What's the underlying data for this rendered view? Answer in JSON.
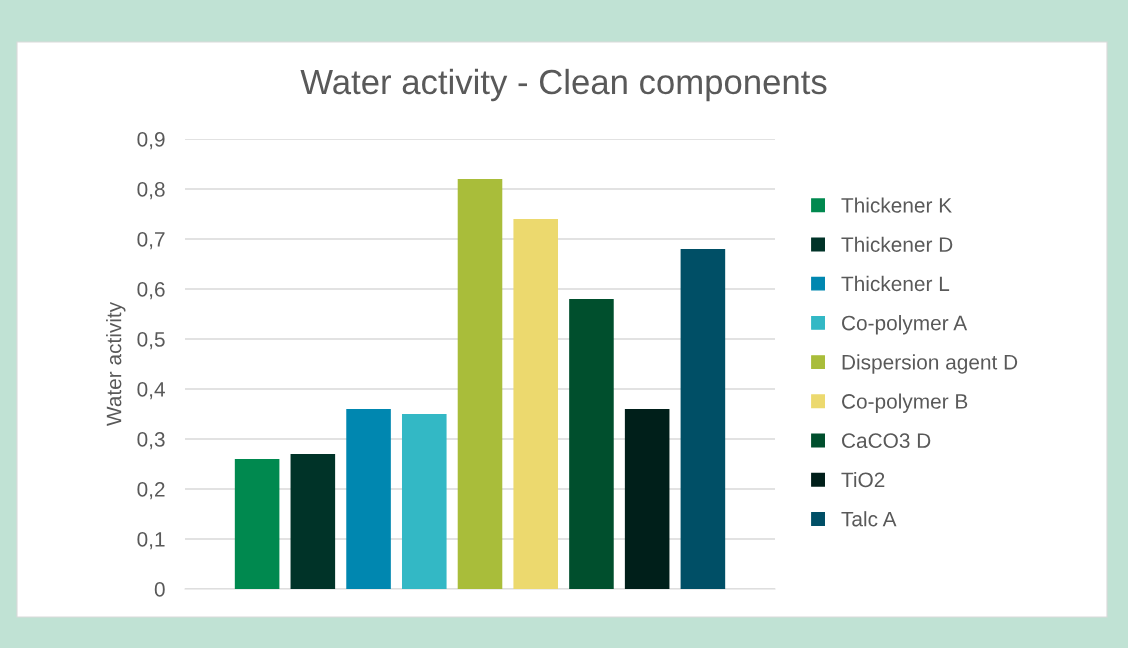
{
  "chart_data": {
    "type": "bar",
    "title": "Water activity - Clean components",
    "ylabel": "Water activity",
    "categories": [
      null
    ],
    "series": [
      {
        "name": "Thickener K",
        "color": "#00894f",
        "values": [
          0.26
        ]
      },
      {
        "name": "Thickener D",
        "color": "#003328",
        "values": [
          0.27
        ]
      },
      {
        "name": "Thickener L",
        "color": "#0087b0",
        "values": [
          0.36
        ]
      },
      {
        "name": "Co-polymer A",
        "color": "#33b8c5",
        "values": [
          0.35
        ]
      },
      {
        "name": "Dispersion agent D",
        "color": "#a9bd3a",
        "values": [
          0.82
        ]
      },
      {
        "name": "Co-polymer B",
        "color": "#ecd96e",
        "values": [
          0.74
        ]
      },
      {
        "name": "CaCO3 D",
        "color": "#004f2d",
        "values": [
          0.58
        ]
      },
      {
        "name": "TiO2",
        "color": "#001f1a",
        "values": [
          0.36
        ]
      },
      {
        "name": "Talc A",
        "color": "#004f66",
        "values": [
          0.68
        ]
      }
    ],
    "ylim": [
      0,
      0.9
    ],
    "yticks": [
      {
        "value": 0,
        "label": "0"
      },
      {
        "value": 0.1,
        "label": "0,1"
      },
      {
        "value": 0.2,
        "label": "0,2"
      },
      {
        "value": 0.3,
        "label": "0,3"
      },
      {
        "value": 0.4,
        "label": "0,4"
      },
      {
        "value": 0.5,
        "label": "0,5"
      },
      {
        "value": 0.6,
        "label": "0,6"
      },
      {
        "value": 0.7,
        "label": "0,7"
      },
      {
        "value": 0.8,
        "label": "0,8"
      },
      {
        "value": 0.9,
        "label": "0,9"
      }
    ],
    "grid": "y",
    "legend": "right"
  }
}
